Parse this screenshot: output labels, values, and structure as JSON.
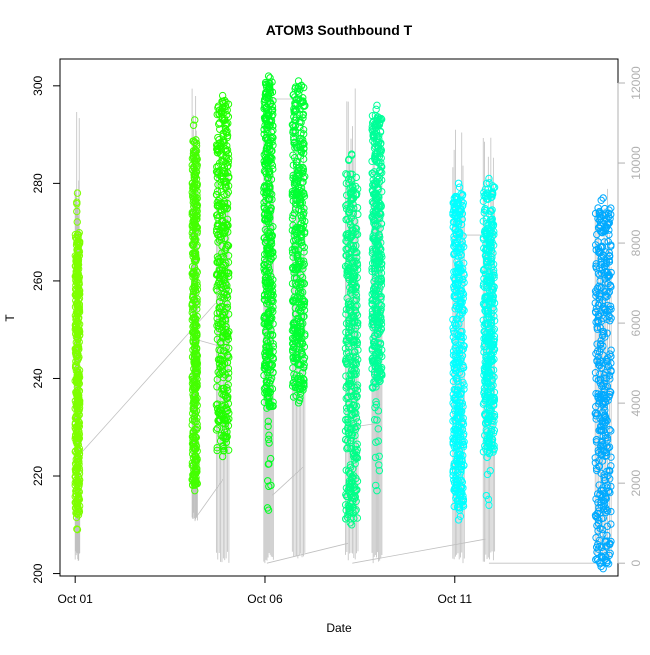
{
  "chart_data": {
    "type": "scatter",
    "title": "ATOM3 Southbound T",
    "xlabel": "Date",
    "ylabel": "T",
    "x_ticks": [
      "Oct 01",
      "Oct 06",
      "Oct 11"
    ],
    "x_tick_values": [
      0,
      5,
      10
    ],
    "xlim": [
      -0.4,
      14.3
    ],
    "ylim": [
      199.5,
      305.5
    ],
    "y_ticks": [
      "200",
      "220",
      "240",
      "260",
      "280",
      "300"
    ],
    "y_tick_values": [
      200,
      220,
      240,
      260,
      280,
      300
    ],
    "secondary_axis": {
      "position": "right",
      "ticks": [
        "0",
        "2000",
        "4000",
        "6000",
        "8000",
        "10000",
        "12000"
      ],
      "tick_values": [
        0,
        2000,
        4000,
        6000,
        8000,
        10000,
        12000
      ],
      "lim": [
        -320,
        12600
      ],
      "color": "#b0b0b0"
    },
    "grid": false,
    "series": [
      {
        "color": "#7fff00",
        "day_start": 0.0,
        "day_end": 0.12,
        "t_min": 209,
        "t_max": 278,
        "dense_min": 212,
        "dense_max": 270
      },
      {
        "color": "#44ff00",
        "day_start": 3.08,
        "day_end": 3.22,
        "t_min": 217,
        "t_max": 293,
        "dense_min": 218,
        "dense_max": 289
      },
      {
        "color": "#22ff00",
        "day_start": 3.72,
        "day_end": 4.05,
        "t_min": 224,
        "t_max": 298,
        "dense_min": 225,
        "dense_max": 297
      },
      {
        "color": "#00ff22",
        "day_start": 4.97,
        "day_end": 5.22,
        "t_min": 213,
        "t_max": 302,
        "dense_min": 234,
        "dense_max": 301
      },
      {
        "color": "#00ff33",
        "day_start": 5.72,
        "day_end": 6.05,
        "t_min": 235,
        "t_max": 301,
        "dense_min": 236,
        "dense_max": 300
      },
      {
        "color": "#00ff88",
        "day_start": 7.12,
        "day_end": 7.45,
        "t_min": 210,
        "t_max": 286,
        "dense_min": 211,
        "dense_max": 282
      },
      {
        "color": "#00ff99",
        "day_start": 7.82,
        "day_end": 8.08,
        "t_min": 217,
        "t_max": 296,
        "dense_min": 238,
        "dense_max": 294
      },
      {
        "color": "#00ffff",
        "day_start": 9.95,
        "day_end": 10.25,
        "t_min": 211,
        "t_max": 280,
        "dense_min": 213,
        "dense_max": 278
      },
      {
        "color": "#00ffee",
        "day_start": 10.75,
        "day_end": 11.05,
        "t_min": 214,
        "t_max": 281,
        "dense_min": 224,
        "dense_max": 280
      },
      {
        "color": "#00aaff",
        "day_start": 13.7,
        "day_end": 14.12,
        "t_min": 201,
        "t_max": 277,
        "dense_min": 202,
        "dense_max": 275
      }
    ],
    "secondary_series": {
      "color": "#c0c0c0",
      "type": "line",
      "segments": [
        {
          "day_start": 0.0,
          "day_end": 0.12,
          "v_min": 0,
          "v_max": 12000
        },
        {
          "day_start": 3.08,
          "day_end": 3.22,
          "v_min": 1000,
          "v_max": 12300
        },
        {
          "day_start": 3.72,
          "day_end": 4.05,
          "v_min": 0,
          "v_max": 11600
        },
        {
          "day_start": 4.97,
          "day_end": 5.22,
          "v_min": 0,
          "v_max": 12300
        },
        {
          "day_start": 5.72,
          "day_end": 6.05,
          "v_min": 0,
          "v_max": 11800
        },
        {
          "day_start": 7.12,
          "day_end": 7.45,
          "v_min": 0,
          "v_max": 11900
        },
        {
          "day_start": 7.82,
          "day_end": 8.08,
          "v_min": 0,
          "v_max": 11500
        },
        {
          "day_start": 9.95,
          "day_end": 10.25,
          "v_min": 0,
          "v_max": 11300
        },
        {
          "day_start": 10.75,
          "day_end": 11.05,
          "v_min": 0,
          "v_max": 11000
        },
        {
          "day_start": 13.7,
          "day_end": 14.12,
          "v_min": 0,
          "v_max": 9800
        }
      ],
      "connectors": [
        [
          0.06,
          2650,
          3.7,
          6500
        ],
        [
          3.15,
          5600,
          3.9,
          5400
        ],
        [
          3.15,
          1100,
          3.9,
          2100
        ],
        [
          5.1,
          11600,
          5.8,
          11600
        ],
        [
          5.05,
          0,
          7.2,
          500
        ],
        [
          6.0,
          2400,
          5.2,
          1700
        ],
        [
          7.3,
          3400,
          8.0,
          3500
        ],
        [
          7.3,
          0,
          10.8,
          600
        ],
        [
          10.1,
          8200,
          10.8,
          8200
        ],
        [
          10.9,
          0,
          14.0,
          0
        ]
      ]
    }
  }
}
